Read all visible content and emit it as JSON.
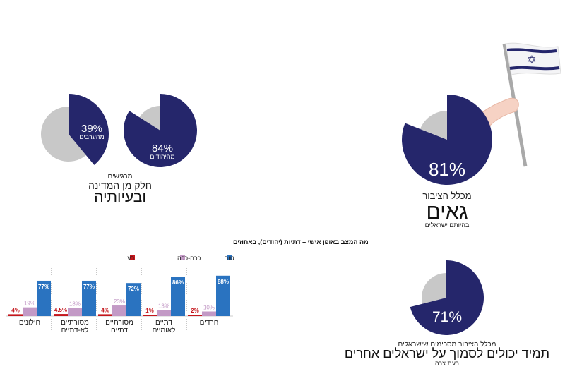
{
  "colors": {
    "navy": "#25266b",
    "grey": "#c8c8c8",
    "good": "#2a73c0",
    "so_so": "#c39ac6",
    "bad": "#c4161c",
    "text": "#222222"
  },
  "panels": {
    "proud": {
      "value": 81,
      "value_label": "81%",
      "line1": "מכלל הציבור",
      "headline": "גאים",
      "line3": "בהיותם ישראלים"
    },
    "trust": {
      "value": 71,
      "value_label": "71%",
      "line1": "מכלל הציבור מסכימים שישראלים",
      "headline": "תמיד יכולים לסמוך על ישראלים אחרים",
      "line3": "בעת צרה"
    },
    "belong": {
      "line1": "מרגישים",
      "line2": "חלק מן המדינה",
      "headline": "ובעיותיה",
      "pies": [
        {
          "value": 84,
          "value_label": "84%",
          "group": "מהיהודים"
        },
        {
          "value": 39,
          "value_label": "39%",
          "group": "מהערבים"
        }
      ]
    }
  },
  "chart_data": [
    {
      "type": "pie",
      "title": "",
      "values": [
        81,
        19
      ],
      "label": "81%"
    },
    {
      "type": "pie",
      "title": "",
      "values": [
        71,
        29
      ],
      "label": "71%"
    },
    {
      "type": "pie",
      "title": "",
      "values": [
        84,
        16
      ],
      "label": "84%"
    },
    {
      "type": "pie",
      "title": "",
      "values": [
        39,
        61
      ],
      "label": "39%"
    },
    {
      "type": "bar",
      "title": "מה המצב באופן אישי – דתיות (יהודים), באחוזים",
      "legend": [
        "טוב",
        "ככה-ככה",
        "רע"
      ],
      "legend_position": "top",
      "categories": [
        [
          "חרדים"
        ],
        [
          "דתיים",
          "לאומיים"
        ],
        [
          "מסורתיים",
          "דתיים"
        ],
        [
          "מסורתיים",
          "לא-דתיים"
        ],
        [
          "חילונים"
        ]
      ],
      "series": [
        {
          "name": "טוב",
          "values": [
            88,
            86,
            72,
            77,
            77
          ],
          "labels": [
            "88%",
            "86%",
            "72%",
            "77%",
            "77%"
          ]
        },
        {
          "name": "ככה-ככה",
          "values": [
            10,
            13,
            23,
            18,
            19
          ],
          "labels": [
            "10%",
            "13%",
            "23%",
            "18%",
            "19%"
          ]
        },
        {
          "name": "רע",
          "values": [
            2,
            1,
            4,
            4.5,
            4
          ],
          "labels": [
            "2%",
            "1%",
            "4%",
            "4.5%",
            "4%"
          ]
        }
      ],
      "grid": false
    }
  ]
}
